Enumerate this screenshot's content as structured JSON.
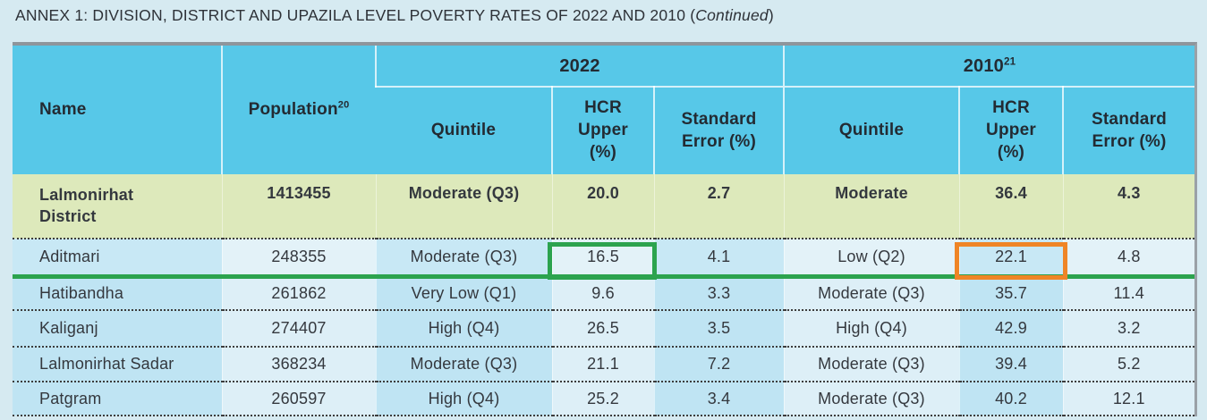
{
  "page": {
    "title_prefix": "ANNEX 1: DIVISION, DISTRICT AND UPAZILA LEVEL POVERTY RATES OF 2022 AND 2010 (",
    "title_italic": "Continued",
    "title_suffix": ")"
  },
  "table": {
    "headers": {
      "name": "Name",
      "population": "Population",
      "population_sup": "20",
      "group_2022": "2022",
      "group_2010": "2010",
      "group_2010_sup": "21",
      "quintile": "Quintile",
      "hcr_upper": "HCR\nUpper\n(%)",
      "standard_error": "Standard\nError (%)"
    },
    "district_row": {
      "name": "Lalmonirhat\nDistrict",
      "population": "1413455",
      "q22": "Moderate (Q3)",
      "hcr22": "20.0",
      "se22": "2.7",
      "q10": "Moderate",
      "hcr10": "36.4",
      "se10": "4.3"
    },
    "rows": [
      {
        "name": "Aditmari",
        "population": "248355",
        "q22": "Moderate (Q3)",
        "hcr22": "16.5",
        "se22": "4.1",
        "q10": "Low (Q2)",
        "hcr10": "22.1",
        "se10": "4.8"
      },
      {
        "name": "Hatibandha",
        "population": "261862",
        "q22": "Very Low (Q1)",
        "hcr22": "9.6",
        "se22": "3.3",
        "q10": "Moderate (Q3)",
        "hcr10": "35.7",
        "se10": "11.4"
      },
      {
        "name": "Kaliganj",
        "population": "274407",
        "q22": "High (Q4)",
        "hcr22": "26.5",
        "se22": "3.5",
        "q10": "High (Q4)",
        "hcr10": "42.9",
        "se10": "3.2"
      },
      {
        "name": "Lalmonirhat Sadar",
        "population": "368234",
        "q22": "Moderate (Q3)",
        "hcr22": "21.1",
        "se22": "7.2",
        "q10": "Moderate (Q3)",
        "hcr10": "39.4",
        "se10": "5.2"
      },
      {
        "name": "Patgram",
        "population": "260597",
        "q22": "High (Q4)",
        "hcr22": "25.2",
        "se22": "3.4",
        "q10": "Moderate (Q3)",
        "hcr10": "40.2",
        "se10": "12.1"
      }
    ],
    "annotations": {
      "highlight_2022_value": "16.5",
      "highlight_2022_color": "#2ca34e",
      "highlight_2010_value": "22.1",
      "highlight_2010_color": "#ef8526",
      "underline_row": "Aditmari",
      "underline_color": "#2ca34e"
    },
    "colors": {
      "header_bg": "#57c8e8",
      "district_row_bg": "#dde9bb",
      "cell_blue": "#bfe4f3",
      "cell_light": "#ddeff7",
      "page_bg": "#d6eaf1"
    }
  }
}
